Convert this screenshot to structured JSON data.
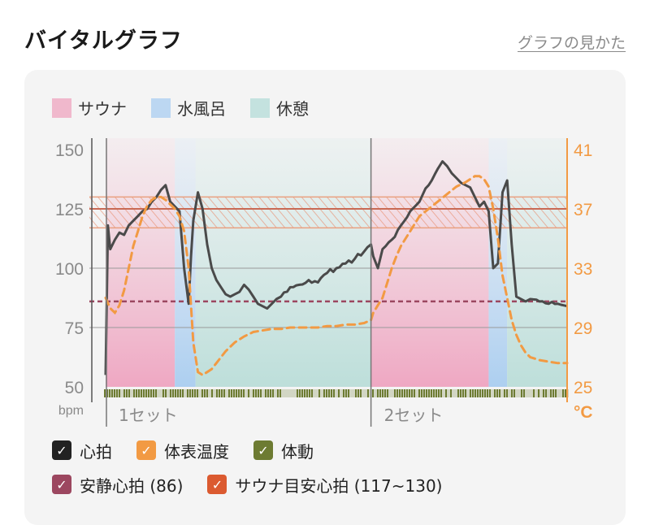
{
  "header": {
    "title": "バイタルグラフ",
    "help_link": "グラフの見かた"
  },
  "phase_legend": [
    {
      "label": "サウナ",
      "color": "#f0b8cc"
    },
    {
      "label": "水風呂",
      "color": "#bcd7f2"
    },
    {
      "label": "休憩",
      "color": "#c4e2df"
    }
  ],
  "toggles": [
    {
      "label": "心拍",
      "color": "#222222",
      "checked": true
    },
    {
      "label": "体表温度",
      "color": "#f29a43",
      "checked": true
    },
    {
      "label": "体動",
      "color": "#6d7b32",
      "checked": true
    },
    {
      "label": "安静心拍 (86)",
      "color": "#9c4760",
      "checked": true
    },
    {
      "label": "サウナ目安心拍 (117~130)",
      "color": "#db5a30",
      "checked": true
    }
  ],
  "chart_data": {
    "type": "line",
    "left_axis": {
      "unit": "bpm",
      "ticks": [
        "150",
        "125",
        "100",
        "75",
        "50"
      ],
      "range": [
        50,
        150
      ]
    },
    "right_axis": {
      "unit": "°C",
      "ticks": [
        "41",
        "37",
        "33",
        "29",
        "25"
      ],
      "range": [
        25,
        41
      ]
    },
    "set_labels": [
      "1セット",
      "2セット"
    ],
    "x_range": [
      0,
      100
    ],
    "phases": [
      {
        "type": "sauna",
        "start": 0,
        "end": 15
      },
      {
        "type": "cold",
        "start": 15,
        "end": 19.5
      },
      {
        "type": "rest",
        "start": 19.5,
        "end": 57.5
      },
      {
        "type": "sauna",
        "start": 57.5,
        "end": 83
      },
      {
        "type": "cold",
        "start": 83,
        "end": 87
      },
      {
        "type": "rest",
        "start": 87,
        "end": 100
      }
    ],
    "set_start_x": [
      0,
      57.5
    ],
    "resting_hr": 86,
    "target_hr_band": [
      117,
      130
    ],
    "target_hr_mid": 125,
    "series": [
      {
        "name": "心拍",
        "x": [
          0,
          0.5,
          1,
          2,
          3,
          4,
          5,
          6,
          7,
          8,
          9,
          10,
          11,
          12,
          13,
          14,
          15,
          16,
          17,
          18,
          18.5,
          19,
          20,
          21,
          22,
          23,
          24,
          25,
          26,
          27,
          28,
          29,
          30,
          31,
          32,
          33,
          34,
          35,
          36,
          37,
          38,
          40,
          42,
          44,
          46,
          48,
          50,
          52,
          54,
          56,
          57.5,
          58,
          59,
          60,
          62,
          64,
          66,
          68,
          70,
          72,
          73,
          74,
          75,
          76,
          77,
          78,
          79,
          80,
          81,
          82,
          83,
          84,
          85,
          86,
          87,
          88,
          89,
          90,
          91,
          92,
          94,
          96,
          98,
          100
        ],
        "y": [
          55,
          118,
          108,
          112,
          115,
          114,
          118,
          120,
          122,
          124,
          125,
          128,
          130,
          133,
          135,
          128,
          126,
          124,
          100,
          85,
          105,
          120,
          132,
          125,
          110,
          100,
          95,
          92,
          89,
          88,
          89,
          90,
          93,
          91,
          88,
          85,
          84,
          83,
          85,
          87,
          88,
          92,
          93,
          95,
          94,
          98,
          100,
          102,
          104,
          107,
          110,
          105,
          100,
          108,
          112,
          118,
          124,
          128,
          135,
          142,
          145,
          143,
          140,
          138,
          136,
          135,
          134,
          130,
          126,
          128,
          124,
          100,
          102,
          132,
          137,
          110,
          88,
          87,
          86,
          87,
          86,
          85,
          85,
          84
        ]
      },
      {
        "name": "体表温度",
        "x": [
          0,
          1,
          2,
          3,
          4,
          5,
          6,
          7,
          8,
          9,
          10,
          11,
          12,
          13,
          14,
          15,
          16,
          17,
          18,
          19,
          20,
          21,
          22,
          23,
          24,
          25,
          26,
          28,
          30,
          32,
          34,
          36,
          38,
          40,
          42,
          44,
          46,
          48,
          50,
          52,
          54,
          56,
          57.5,
          58,
          59,
          60,
          61,
          62,
          63,
          64,
          66,
          68,
          70,
          72,
          74,
          76,
          78,
          80,
          81,
          82,
          83,
          84,
          85,
          86,
          87,
          88,
          89,
          90,
          91,
          92,
          94,
          96,
          98,
          100
        ],
        "y": [
          31.0,
          30.3,
          30.0,
          30.5,
          31.5,
          33.0,
          34.5,
          35.5,
          36.5,
          37.2,
          37.6,
          37.8,
          37.8,
          37.6,
          37.3,
          37.0,
          36.5,
          35.5,
          33.0,
          28.0,
          26.0,
          25.8,
          26.0,
          26.2,
          26.6,
          27.0,
          27.4,
          28.0,
          28.4,
          28.7,
          28.8,
          28.9,
          28.9,
          29.0,
          29.0,
          29.0,
          29.0,
          29.1,
          29.1,
          29.2,
          29.2,
          29.3,
          29.5,
          30.0,
          30.5,
          31.0,
          32.0,
          33.0,
          33.8,
          34.5,
          35.5,
          36.5,
          37.0,
          37.5,
          38.0,
          38.5,
          38.8,
          39.2,
          39.2,
          39.0,
          38.5,
          37.0,
          35.0,
          32.5,
          31.0,
          29.5,
          28.5,
          27.8,
          27.3,
          27.0,
          26.8,
          26.7,
          26.6,
          26.6
        ]
      }
    ]
  }
}
